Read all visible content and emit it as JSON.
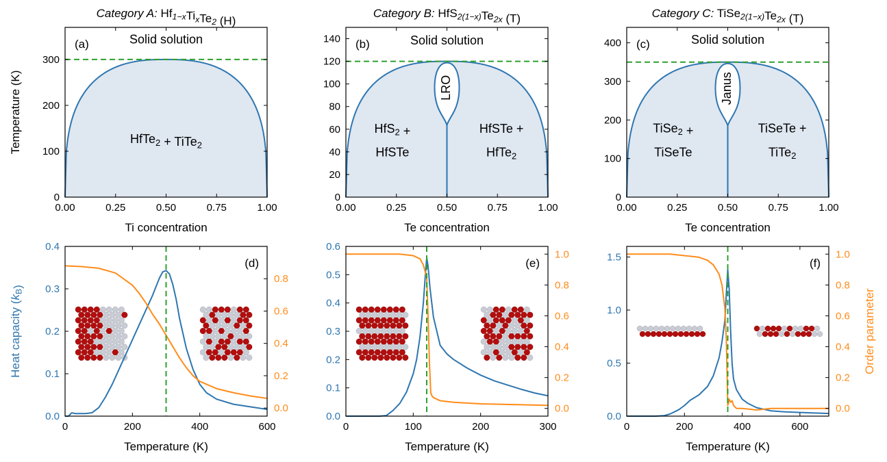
{
  "colors": {
    "blue": "#2e76b0",
    "orange": "#ff8c1a",
    "green": "#2ca02c",
    "fill": "#dfe7f1",
    "atom_red": "#b30d0d",
    "atom_grey": "#c9ccd4"
  },
  "chart_data": [
    {
      "id": "a",
      "type": "area",
      "panel_label": "(a)",
      "title_italic": "Category A:",
      "title_formula": [
        [
          "Hf",
          ""
        ],
        [
          "1−x",
          "sub"
        ],
        [
          "Ti",
          ""
        ],
        [
          "x",
          "sub"
        ],
        [
          "Te",
          ""
        ],
        [
          "2",
          "sub"
        ],
        [
          " (H)",
          ""
        ]
      ],
      "xlabel": "Ti concentration",
      "ylabel": "Temperature (K)",
      "xlim": [
        0,
        1
      ],
      "ylim": [
        0,
        370
      ],
      "xticks": [
        0,
        0.25,
        0.5,
        0.75,
        1
      ],
      "xtick_labels": [
        "0.00",
        "0.25",
        "0.50",
        "0.75",
        "1.00"
      ],
      "yticks": [
        0,
        100,
        200,
        300
      ],
      "ytick_labels": [
        "0",
        "100",
        "200",
        "300"
      ],
      "tc": 300,
      "shape": "dome",
      "annotations": [
        {
          "x": 0.5,
          "y": 335,
          "parts": [
            [
              "Solid solution",
              ""
            ]
          ]
        },
        {
          "x": 0.5,
          "y": 118,
          "parts": [
            [
              "HfTe",
              ""
            ],
            [
              "2",
              "sub"
            ],
            [
              " + TiTe",
              ""
            ],
            [
              "2",
              "sub"
            ]
          ]
        }
      ]
    },
    {
      "id": "b",
      "type": "area",
      "panel_label": "(b)",
      "title_italic": "Category B:",
      "title_formula": [
        [
          "HfS",
          ""
        ],
        [
          "2(1−x)",
          "sub"
        ],
        [
          "Te",
          ""
        ],
        [
          "2x",
          "sub"
        ],
        [
          " (T)",
          ""
        ]
      ],
      "xlabel": "Te concentration",
      "ylabel": "",
      "xlim": [
        0,
        1
      ],
      "ylim": [
        0,
        150
      ],
      "xticks": [
        0,
        0.25,
        0.5,
        0.75,
        1
      ],
      "xtick_labels": [
        "0.00",
        "0.25",
        "0.50",
        "0.75",
        "1.00"
      ],
      "yticks": [
        0,
        20,
        40,
        60,
        80,
        100,
        120,
        140
      ],
      "ytick_labels": [
        "0",
        "20",
        "40",
        "60",
        "80",
        "100",
        "120",
        "140"
      ],
      "tc": 120,
      "shape": "dome-split",
      "inner_label": "LRO",
      "annotations": [
        {
          "x": 0.5,
          "y": 135,
          "parts": [
            [
              "Solid solution",
              ""
            ]
          ]
        },
        {
          "x": 0.23,
          "y": 57,
          "parts": [
            [
              "HfS",
              ""
            ],
            [
              "2",
              "sub"
            ],
            [
              " +",
              ""
            ]
          ]
        },
        {
          "x": 0.23,
          "y": 36,
          "parts": [
            [
              "HfSTe",
              ""
            ]
          ]
        },
        {
          "x": 0.77,
          "y": 57,
          "parts": [
            [
              "HfSTe +",
              ""
            ]
          ]
        },
        {
          "x": 0.77,
          "y": 36,
          "parts": [
            [
              "HfTe",
              ""
            ],
            [
              "2",
              "sub"
            ]
          ]
        }
      ]
    },
    {
      "id": "c",
      "type": "area",
      "panel_label": "(c)",
      "title_italic": "Category C:",
      "title_formula": [
        [
          "TiSe",
          ""
        ],
        [
          "2(1−x)",
          "sub"
        ],
        [
          "Te",
          ""
        ],
        [
          "2x",
          "sub"
        ],
        [
          " (T)",
          ""
        ]
      ],
      "xlabel": "Te concentration",
      "ylabel": "",
      "xlim": [
        0,
        1
      ],
      "ylim": [
        0,
        440
      ],
      "xticks": [
        0,
        0.25,
        0.5,
        0.75,
        1
      ],
      "xtick_labels": [
        "0.00",
        "0.25",
        "0.50",
        "0.75",
        "1.00"
      ],
      "yticks": [
        0,
        100,
        200,
        300,
        400
      ],
      "ytick_labels": [
        "0",
        "100",
        "200",
        "300",
        "400"
      ],
      "tc": 350,
      "shape": "dome-split",
      "inner_label": "Janus",
      "annotations": [
        {
          "x": 0.5,
          "y": 397,
          "parts": [
            [
              "Solid solution",
              ""
            ]
          ]
        },
        {
          "x": 0.23,
          "y": 168,
          "parts": [
            [
              "TiSe",
              ""
            ],
            [
              "2",
              "sub"
            ],
            [
              " +",
              ""
            ]
          ]
        },
        {
          "x": 0.23,
          "y": 106,
          "parts": [
            [
              "TiSeTe",
              ""
            ]
          ]
        },
        {
          "x": 0.77,
          "y": 168,
          "parts": [
            [
              "TiSeTe +",
              ""
            ]
          ]
        },
        {
          "x": 0.77,
          "y": 106,
          "parts": [
            [
              "TiTe",
              ""
            ],
            [
              "2",
              "sub"
            ]
          ]
        }
      ]
    },
    {
      "id": "d",
      "type": "line",
      "panel_label": "(d)",
      "xlabel": "Temperature (K)",
      "ylabel_left_parts": [
        [
          "Heat capacity (",
          ""
        ],
        [
          "k",
          "ital"
        ],
        [
          "B",
          "sub"
        ],
        [
          ")",
          ""
        ]
      ],
      "ylabel_right": "",
      "xlim": [
        0,
        600
      ],
      "ylim_left": [
        0,
        0.4
      ],
      "ylim_right": [
        -0.05,
        1.0
      ],
      "xticks": [
        0,
        200,
        400,
        600
      ],
      "xtick_labels": [
        "0",
        "200",
        "400",
        "600"
      ],
      "yticks_left": [
        0,
        0.1,
        0.2,
        0.3,
        0.4
      ],
      "ytick_labels_left": [
        "0.0",
        "0.1",
        "0.2",
        "0.3",
        "0.4"
      ],
      "yticks_right": [
        0,
        0.2,
        0.4,
        0.6,
        0.8
      ],
      "ytick_labels_right": [
        "0.0",
        "0.2",
        "0.4",
        "0.6",
        "0.8"
      ],
      "tc": 300,
      "inset": "segregated-vs-random",
      "series": [
        {
          "axis": "left",
          "color": "blue",
          "x": [
            0,
            10,
            20,
            30,
            40,
            60,
            80,
            100,
            120,
            140,
            160,
            180,
            200,
            220,
            240,
            260,
            270,
            280,
            290,
            300,
            310,
            320,
            330,
            340,
            360,
            380,
            400,
            420,
            450,
            500,
            550,
            600
          ],
          "y": [
            0,
            0,
            0.008,
            0.006,
            0.006,
            0.006,
            0.008,
            0.02,
            0.045,
            0.075,
            0.11,
            0.145,
            0.18,
            0.215,
            0.25,
            0.285,
            0.305,
            0.325,
            0.34,
            0.343,
            0.335,
            0.31,
            0.275,
            0.23,
            0.16,
            0.11,
            0.075,
            0.055,
            0.04,
            0.028,
            0.022,
            0.016
          ]
        },
        {
          "axis": "right",
          "color": "orange",
          "x": [
            0,
            50,
            100,
            150,
            200,
            220,
            240,
            260,
            280,
            300,
            320,
            340,
            360,
            380,
            400,
            450,
            500,
            550,
            600
          ],
          "y": [
            0.88,
            0.875,
            0.865,
            0.835,
            0.76,
            0.71,
            0.65,
            0.58,
            0.52,
            0.45,
            0.38,
            0.31,
            0.25,
            0.2,
            0.165,
            0.12,
            0.095,
            0.075,
            0.06
          ]
        }
      ]
    },
    {
      "id": "e",
      "type": "line",
      "panel_label": "(e)",
      "xlabel": "Temperature (K)",
      "ylabel_left_parts": [],
      "ylabel_right": "",
      "xlim": [
        0,
        300
      ],
      "ylim_left": [
        0,
        0.6
      ],
      "ylim_right": [
        -0.05,
        1.05
      ],
      "xticks": [
        0,
        100,
        200,
        300
      ],
      "xtick_labels": [
        "0",
        "100",
        "200",
        "300"
      ],
      "yticks_left": [
        0,
        0.1,
        0.2,
        0.3,
        0.4,
        0.5,
        0.6
      ],
      "ytick_labels_left": [
        "0.0",
        "0.1",
        "0.2",
        "0.3",
        "0.4",
        "0.5",
        "0.6"
      ],
      "yticks_right": [
        0,
        0.2,
        0.4,
        0.6,
        0.8,
        1.0
      ],
      "ytick_labels_right": [
        "0.0",
        "0.2",
        "0.4",
        "0.6",
        "0.8",
        "1.0"
      ],
      "tc": 120,
      "inset": "stripes-vs-random",
      "series": [
        {
          "axis": "left",
          "color": "blue",
          "x": [
            0,
            50,
            60,
            70,
            80,
            90,
            100,
            105,
            110,
            115,
            118,
            120,
            122,
            125,
            130,
            140,
            150,
            160,
            180,
            200,
            220,
            240,
            260,
            280,
            300
          ],
          "y": [
            0,
            0,
            0.002,
            0.02,
            0.045,
            0.085,
            0.15,
            0.2,
            0.28,
            0.4,
            0.5,
            0.56,
            0.53,
            0.45,
            0.35,
            0.25,
            0.22,
            0.2,
            0.17,
            0.145,
            0.125,
            0.11,
            0.095,
            0.082,
            0.072
          ]
        },
        {
          "axis": "right",
          "color": "orange",
          "x": [
            0,
            50,
            80,
            100,
            110,
            115,
            120,
            122,
            124,
            126,
            128,
            130,
            140,
            160,
            200,
            250,
            300
          ],
          "y": [
            1.0,
            1.0,
            1.0,
            0.99,
            0.97,
            0.93,
            0.85,
            0.6,
            0.3,
            0.1,
            0.08,
            0.07,
            0.05,
            0.04,
            0.03,
            0.025,
            0.02
          ]
        }
      ]
    },
    {
      "id": "f",
      "type": "line",
      "panel_label": "(f)",
      "xlabel": "Temperature (K)",
      "ylabel_left_parts": [],
      "ylabel_right": "Order parameter",
      "xlim": [
        0,
        700
      ],
      "ylim_left": [
        0,
        1.6
      ],
      "ylim_right": [
        -0.05,
        1.05
      ],
      "xticks": [
        0,
        200,
        400,
        600
      ],
      "xtick_labels": [
        "0",
        "200",
        "400",
        "600"
      ],
      "yticks_left": [
        0,
        0.5,
        1.0,
        1.5
      ],
      "ytick_labels_left": [
        "0.0",
        "0.5",
        "1.0",
        "1.5"
      ],
      "yticks_right": [
        0,
        0.2,
        0.4,
        0.6,
        0.8,
        1.0
      ],
      "ytick_labels_right": [
        "0.0",
        "0.2",
        "0.4",
        "0.6",
        "0.8",
        "1.0"
      ],
      "tc": 350,
      "inset": "layers-vs-random",
      "series": [
        {
          "axis": "left",
          "color": "blue",
          "x": [
            0,
            100,
            130,
            150,
            180,
            200,
            220,
            250,
            280,
            300,
            320,
            330,
            340,
            345,
            350,
            355,
            360,
            365,
            370,
            380,
            400,
            420,
            450,
            500,
            550,
            600,
            650,
            700
          ],
          "y": [
            0,
            0,
            0.005,
            0.02,
            0.06,
            0.1,
            0.15,
            0.2,
            0.28,
            0.38,
            0.55,
            0.7,
            0.9,
            1.15,
            1.38,
            1.2,
            0.8,
            0.5,
            0.35,
            0.25,
            0.16,
            0.12,
            0.08,
            0.05,
            0.04,
            0.035,
            0.03,
            0.025
          ]
        },
        {
          "axis": "right",
          "color": "orange",
          "x": [
            0,
            150,
            200,
            250,
            280,
            300,
            320,
            330,
            340,
            345,
            348,
            350,
            352,
            355,
            360,
            365,
            370,
            380,
            400,
            450,
            500,
            600,
            700
          ],
          "y": [
            1.0,
            1.0,
            0.99,
            0.98,
            0.96,
            0.93,
            0.87,
            0.8,
            0.65,
            0.45,
            0.2,
            0.02,
            0.03,
            0.06,
            0.04,
            0.05,
            0.02,
            0.0,
            0.0,
            -0.01,
            0.0,
            0.0,
            0.0
          ]
        }
      ]
    }
  ]
}
